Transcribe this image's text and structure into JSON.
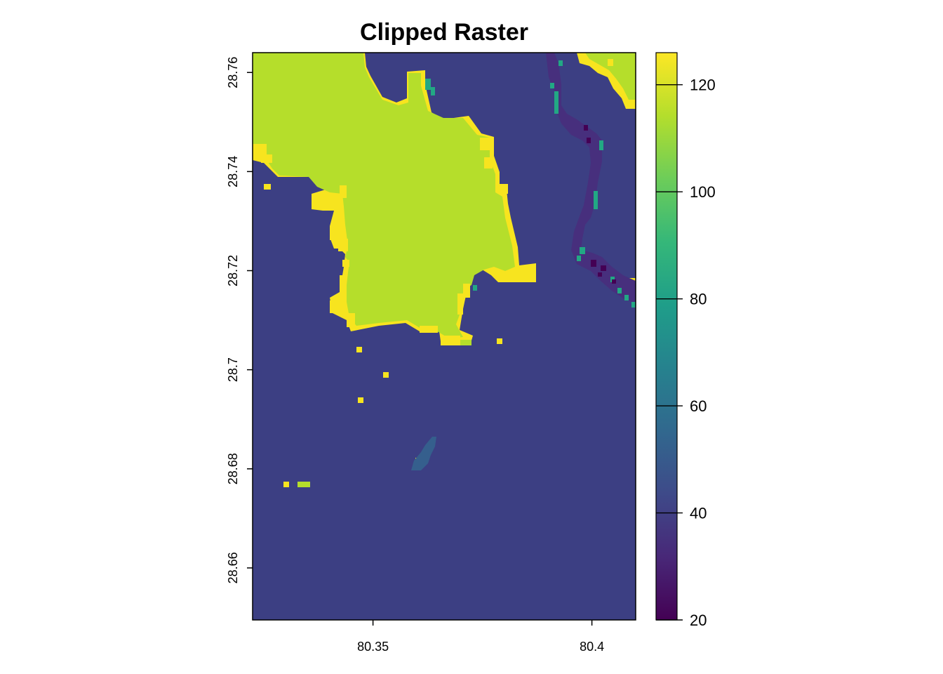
{
  "chart_data": {
    "type": "heatmap",
    "title": "Clipped Raster",
    "xlabel": "",
    "ylabel": "",
    "xlim": [
      80.3225,
      80.41
    ],
    "ylim": [
      28.6495,
      28.764
    ],
    "x_ticks": [
      80.35,
      80.4
    ],
    "x_tick_labels": [
      "80.35",
      "80.4"
    ],
    "y_ticks": [
      28.66,
      28.68,
      28.7,
      28.72,
      28.74,
      28.76
    ],
    "y_tick_labels": [
      "28.66",
      "28.68",
      "28.7",
      "28.72",
      "28.74",
      "28.76"
    ],
    "colorbar": {
      "range": [
        20,
        126
      ],
      "ticks": [
        20,
        40,
        60,
        80,
        100,
        120
      ],
      "tick_labels": [
        "20",
        "40",
        "60",
        "80",
        "100",
        "120"
      ],
      "palette": [
        "#440154",
        "#482878",
        "#3E4A89",
        "#31688E",
        "#26828E",
        "#1F9E89",
        "#35B779",
        "#6DCD59",
        "#B4DE2C",
        "#FDE725"
      ]
    },
    "classes": [
      {
        "value": 38,
        "color": "#3C3F83",
        "role": "background"
      },
      {
        "value": 113,
        "color": "#B5DE2B",
        "role": "main landmass"
      },
      {
        "value": 124,
        "color": "#F7E41F",
        "role": "edges"
      },
      {
        "value": 30,
        "color": "#472F7D",
        "role": "stream"
      },
      {
        "value": 50,
        "color": "#355F8D",
        "role": "patch"
      },
      {
        "value": 90,
        "color": "#22A884",
        "role": "patch"
      },
      {
        "value": 22,
        "color": "#440154",
        "role": "patch"
      }
    ],
    "grid": false,
    "legend": "right"
  }
}
